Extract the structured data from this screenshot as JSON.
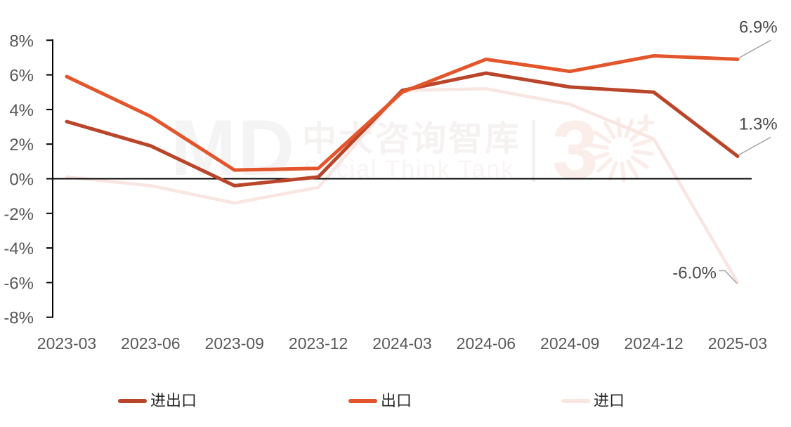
{
  "chart_data": {
    "type": "line",
    "title": "",
    "categories": [
      "2023-03",
      "2023-06",
      "2023-09",
      "2023-12",
      "2024-03",
      "2024-06",
      "2024-09",
      "2024-12",
      "2025-03"
    ],
    "series": [
      {
        "name": "进出口",
        "color": "#B9452A",
        "values": [
          3.3,
          1.9,
          -0.4,
          0.1,
          5.1,
          6.1,
          5.3,
          5.0,
          1.3
        ]
      },
      {
        "name": "出口",
        "color": "#E3562C",
        "values": [
          5.9,
          3.6,
          0.5,
          0.6,
          5.0,
          6.9,
          6.2,
          7.1,
          6.9
        ]
      },
      {
        "name": "进口",
        "color": "#F9E5E1",
        "values": [
          0.1,
          -0.4,
          -1.4,
          -0.5,
          5.1,
          5.2,
          4.3,
          2.3,
          -6.0
        ]
      }
    ],
    "ylim": [
      -8,
      8
    ],
    "ytick_values": [
      8,
      6,
      4,
      2,
      0,
      -2,
      -4,
      -6,
      -8
    ],
    "ytick_labels": [
      "8%",
      "6%",
      "4%",
      "2%",
      "0%",
      "-2%",
      "-4%",
      "-6%",
      "-8%"
    ],
    "xlabel": "",
    "ylabel": "",
    "grid": false,
    "legend_position": "bottom"
  },
  "annotations": [
    {
      "label": "6.9%",
      "series": "出口",
      "point_index": 8,
      "placement": "above-right"
    },
    {
      "label": "1.3%",
      "series": "进出口",
      "point_index": 8,
      "placement": "above-right"
    },
    {
      "label": "-6.0%",
      "series": "进口",
      "point_index": 8,
      "placement": "left"
    }
  ],
  "watermark": {
    "logo": "MD",
    "brand": "中大咨询智库",
    "tagline": "Social Think Tank",
    "mark": "3",
    "plus": "+"
  },
  "colors": {
    "axis": "#000000",
    "tick_label": "#595959",
    "annotation_label": "#4A4A4A",
    "leader_line": "#A9A9A9",
    "background": "#FFFFFF"
  }
}
